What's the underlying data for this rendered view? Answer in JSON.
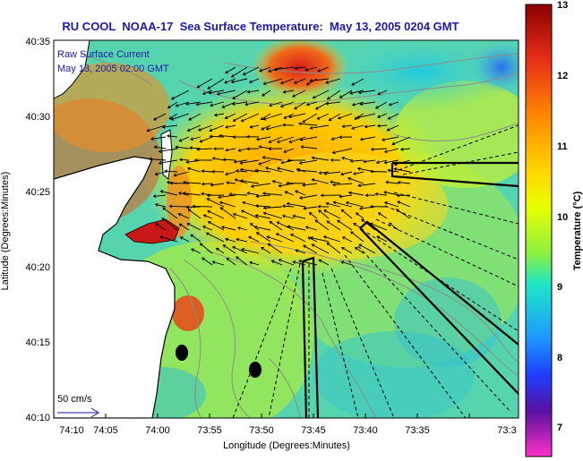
{
  "title": "RU COOL  NOAA-17  Sea Surface Temperature:  May 13, 2005 0204 GMT",
  "legend": {
    "line1": "Raw Surface Current",
    "line2": "May 13, 2005 02:00 GMT",
    "scale_label": "50 cm/s"
  },
  "axes": {
    "xlabel": "Longitude (Degrees:Minutes)",
    "ylabel": "Latitude (Degrees:Minutes)",
    "x_ticks": [
      "74:10",
      "74:05",
      "74:00",
      "73:55",
      "73:50",
      "73:45",
      "73:40",
      "73:35",
      "73:3"
    ],
    "y_ticks": [
      "40:35",
      "40:30",
      "40:25",
      "40:20",
      "40:15",
      "40:10"
    ]
  },
  "colorbar": {
    "label": "Temperature (°C)",
    "ticks": [
      "13",
      "12",
      "11",
      "10",
      "9",
      "8",
      "7"
    ],
    "colors": {
      "t13": "#8b0000",
      "t12": "#e62d18",
      "t11": "#ffb300",
      "t10": "#e8ff00",
      "t9": "#1ee6c8",
      "t8": "#1e78ff",
      "t7": "#5a10a0",
      "t6": "#ff32c8"
    }
  },
  "map_colors": {
    "land": "#ffffff",
    "sea_cool": "#4ad2b4",
    "sea_mid": "#a6e840",
    "sea_warm": "#f0c820",
    "sea_hot": "#e84818",
    "coastline": "#000000",
    "contour": "#8c8c8c"
  }
}
